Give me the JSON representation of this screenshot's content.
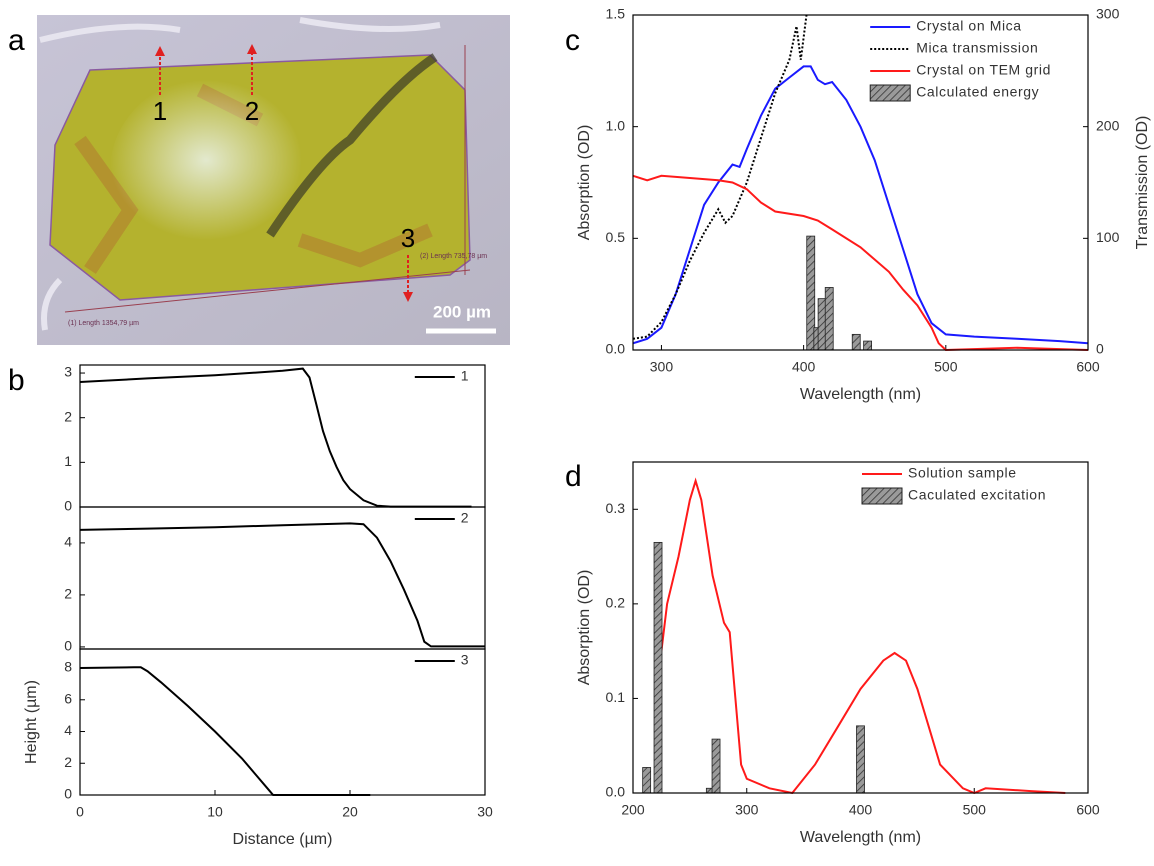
{
  "panel_labels": [
    "a",
    "b",
    "c",
    "d"
  ],
  "image": {
    "markers": [
      "1",
      "2",
      "3"
    ],
    "scale_bar": "200 µm",
    "measurements": [
      "(1) Length 1354,79 µm",
      "(2) Length 735,78 µm"
    ]
  },
  "chart_data": [
    {
      "type": "line",
      "xlim": [
        0,
        30
      ],
      "ylim": [
        0,
        3.18
      ],
      "yticks": [
        0,
        1,
        2,
        3
      ],
      "legend": "upper right",
      "series": [
        {
          "name": "1",
          "color": "#000000",
          "x": [
            0,
            5,
            10,
            15,
            16.5,
            17,
            17.5,
            18,
            18.5,
            19,
            19.5,
            20,
            21,
            22,
            23,
            29
          ],
          "values": [
            2.8,
            2.88,
            2.95,
            3.05,
            3.1,
            2.9,
            2.3,
            1.7,
            1.25,
            0.9,
            0.6,
            0.4,
            0.15,
            0.03,
            0.01,
            0.01
          ]
        }
      ]
    },
    {
      "type": "line",
      "xlim": [
        0,
        30
      ],
      "ylim": [
        -0.08,
        5.38
      ],
      "yticks": [
        0,
        2,
        4
      ],
      "legend": "upper right",
      "series": [
        {
          "name": "2",
          "color": "#000000",
          "x": [
            0,
            5,
            10,
            15,
            20,
            21,
            22,
            23,
            24,
            25,
            25.5,
            26,
            30
          ],
          "values": [
            4.5,
            4.55,
            4.6,
            4.68,
            4.75,
            4.72,
            4.2,
            3.3,
            2.2,
            1.0,
            0.2,
            0.02,
            0.02
          ]
        }
      ]
    },
    {
      "type": "line",
      "xlim": [
        0,
        30
      ],
      "ylim": [
        0,
        9.2
      ],
      "xticks": [
        0,
        10,
        20,
        30
      ],
      "yticks": [
        0,
        2,
        4,
        6,
        8
      ],
      "legend": "upper right",
      "xlabel": "Distance (µm)",
      "ylabel": "Height (µm)",
      "series": [
        {
          "name": "3",
          "color": "#000000",
          "x": [
            0,
            4,
            4.5,
            5,
            6,
            8,
            10,
            12,
            13,
            14,
            14.3,
            21.5
          ],
          "values": [
            8,
            8.05,
            8.05,
            7.8,
            7.1,
            5.6,
            4.0,
            2.3,
            1.3,
            0.3,
            0,
            0
          ]
        }
      ]
    },
    {
      "type": "line",
      "xlim": [
        280,
        600
      ],
      "ylim": [
        0,
        1.5
      ],
      "y2lim": [
        0,
        300
      ],
      "xticks": [
        300,
        400,
        500,
        600
      ],
      "yticks": [
        {
          "value": 0,
          "label": "0.0"
        },
        {
          "value": 0.5,
          "label": "0.5"
        },
        {
          "value": 1,
          "label": "1.0"
        },
        1.5
      ],
      "y2ticks": [
        0,
        100,
        200,
        300
      ],
      "legend": "upper right",
      "xlabel": "Wavelength (nm)",
      "ylabel": "Absorption (OD)",
      "y2label": "Transmission (OD)",
      "series": [
        {
          "name": "Crystal on Mica",
          "color": "#1a1aff",
          "x": [
            280,
            290,
            300,
            310,
            320,
            330,
            340,
            350,
            355,
            360,
            370,
            380,
            390,
            400,
            405,
            410,
            415,
            420,
            430,
            440,
            450,
            460,
            470,
            480,
            490,
            500,
            520,
            550,
            580,
            600
          ],
          "values": [
            0.03,
            0.05,
            0.1,
            0.25,
            0.45,
            0.65,
            0.75,
            0.83,
            0.82,
            0.9,
            1.05,
            1.17,
            1.22,
            1.27,
            1.27,
            1.21,
            1.19,
            1.2,
            1.12,
            1.0,
            0.85,
            0.65,
            0.45,
            0.25,
            0.12,
            0.07,
            0.06,
            0.05,
            0.04,
            0.03
          ]
        },
        {
          "name": "Mica transmission",
          "color": "#000000",
          "style": "dotted",
          "axis": "y2",
          "x": [
            280,
            290,
            300,
            310,
            320,
            330,
            340,
            345,
            350,
            360,
            370,
            380,
            390,
            395,
            398,
            402
          ],
          "values": [
            10,
            12,
            25,
            50,
            80,
            105,
            126,
            114,
            120,
            150,
            190,
            230,
            260,
            290,
            260,
            300
          ]
        },
        {
          "name": "Crystal on TEM grid",
          "color": "#ff1a1a",
          "x": [
            280,
            290,
            300,
            320,
            340,
            350,
            360,
            370,
            380,
            400,
            410,
            420,
            440,
            460,
            470,
            480,
            490,
            495,
            500,
            550,
            600
          ],
          "values": [
            0.78,
            0.76,
            0.78,
            0.77,
            0.76,
            0.75,
            0.72,
            0.66,
            0.62,
            0.6,
            0.58,
            0.54,
            0.46,
            0.35,
            0.27,
            0.2,
            0.1,
            0.03,
            0,
            0.01,
            0
          ]
        },
        {
          "name": "Calculated energy",
          "type": "bar",
          "color": "#999999",
          "x": [
            405,
            410,
            413,
            418,
            437,
            445
          ],
          "values": [
            0.51,
            0.1,
            0.23,
            0.28,
            0.07,
            0.04
          ]
        }
      ]
    },
    {
      "type": "line",
      "xlim": [
        200,
        600
      ],
      "ylim": [
        0,
        0.35
      ],
      "xticks": [
        200,
        300,
        400,
        500,
        600
      ],
      "yticks": [
        {
          "value": 0,
          "label": "0.0"
        },
        0.1,
        0.2,
        0.3
      ],
      "legend": "upper right",
      "xlabel": "Wavelength (nm)",
      "ylabel": "Absorption (OD)",
      "series": [
        {
          "name": "Solution sample",
          "color": "#ff1a1a",
          "x": [
            225,
            230,
            240,
            250,
            255,
            260,
            270,
            280,
            285,
            290,
            295,
            300,
            320,
            340,
            360,
            380,
            400,
            420,
            430,
            440,
            450,
            460,
            470,
            490,
            500,
            510,
            550,
            580
          ],
          "values": [
            0.15,
            0.2,
            0.25,
            0.31,
            0.33,
            0.31,
            0.23,
            0.18,
            0.17,
            0.1,
            0.03,
            0.015,
            0.005,
            0,
            0.03,
            0.07,
            0.11,
            0.14,
            0.148,
            0.14,
            0.11,
            0.07,
            0.03,
            0.005,
            0,
            0.005,
            0.002,
            0
          ]
        },
        {
          "name": "Caculated excitation",
          "type": "bar",
          "color": "#999999",
          "x": [
            212,
            222,
            268,
            273,
            400
          ],
          "values": [
            0.027,
            0.265,
            0.005,
            0.057,
            0.071
          ]
        }
      ]
    }
  ]
}
